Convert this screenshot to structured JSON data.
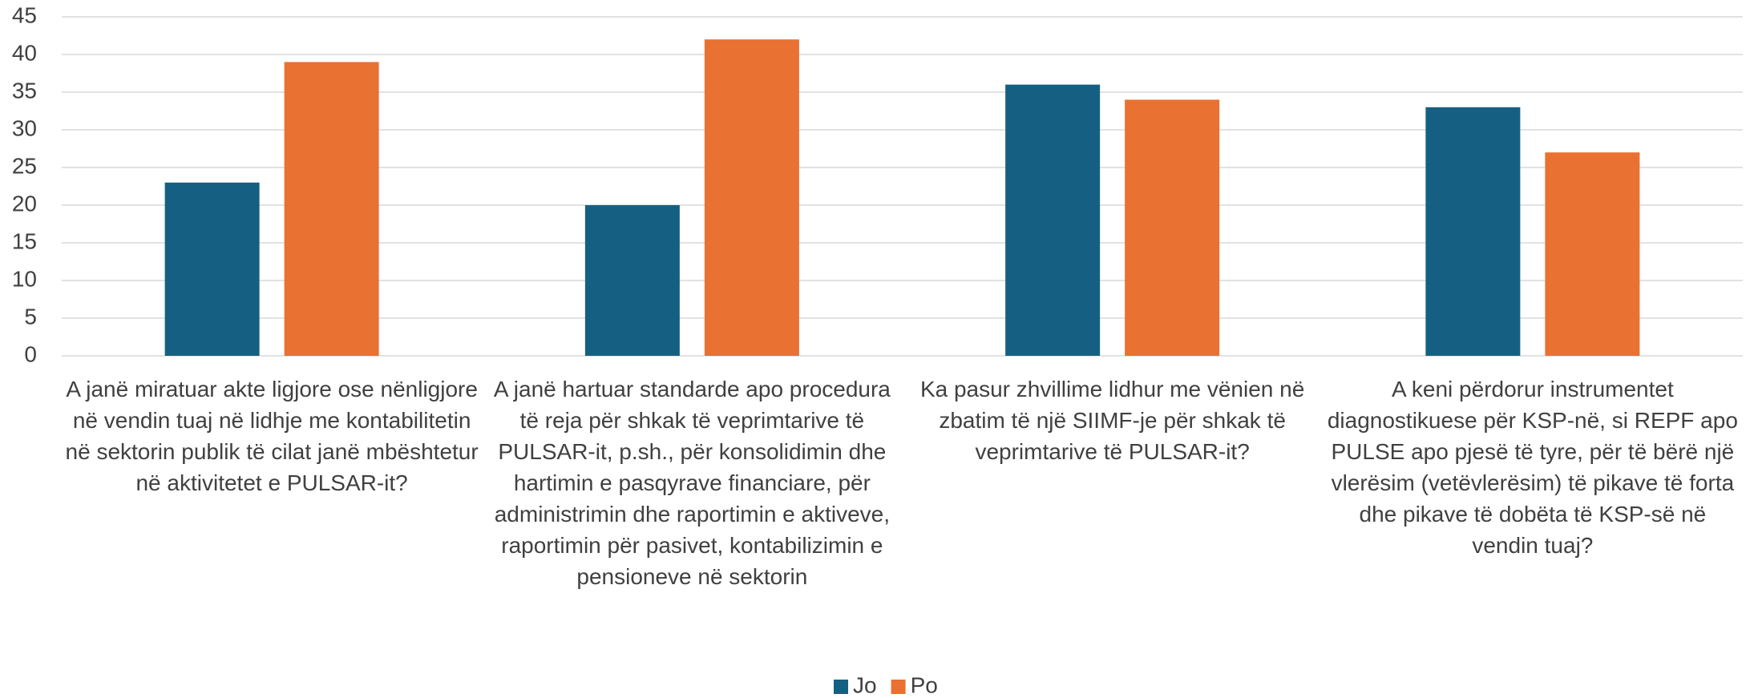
{
  "chart_data": {
    "type": "bar",
    "categories": [
      "A janë miratuar akte ligjore ose nënligjore në vendin tuaj në lidhje me kontabilitetin në sektorin publik të cilat janë mbështetur në aktivitetet e PULSAR-it?",
      "A janë hartuar standarde apo procedura të reja për shkak të veprimtarive të PULSAR-it, p.sh., për konsolidimin dhe hartimin e pasqyrave financiare, për administrimin dhe raportimin e aktiveve, raportimin për pasivet, kontabilizimin e pensioneve në sektorin",
      "Ka pasur zhvillime lidhur me vënien në zbatim të një SIIMF-je për shkak të veprimtarive të PULSAR-it?",
      "A keni përdorur instrumentet diagnostikuese për KSP-në, si REPF apo PULSE apo pjesë të tyre, për të bërë një vlerësim (vetëvlerësim) të pikave të forta dhe pikave të dobëta të KSP-së në vendin tuaj?"
    ],
    "series": [
      {
        "name": "Jo",
        "color": "#156082",
        "values": [
          23,
          20,
          36,
          33
        ]
      },
      {
        "name": "Po",
        "color": "#e97132",
        "values": [
          39,
          42,
          34,
          27
        ]
      }
    ],
    "ylim": [
      0,
      45
    ],
    "yticks": [
      0,
      5,
      10,
      15,
      20,
      25,
      30,
      35,
      40,
      45
    ],
    "grid": true,
    "legend": "bottom"
  }
}
